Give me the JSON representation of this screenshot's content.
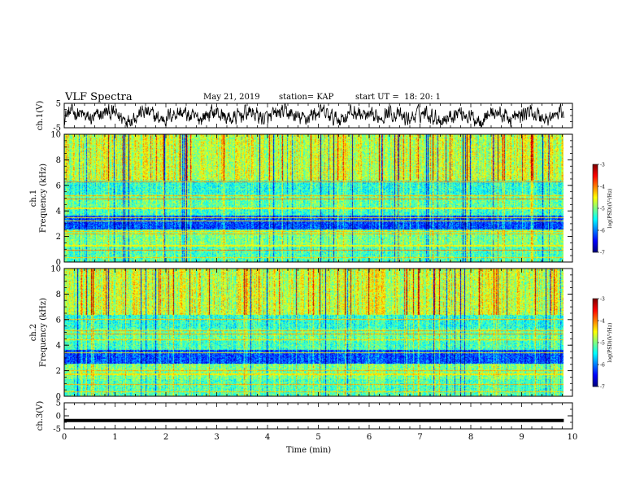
{
  "header": {
    "title": "VLF Spectra",
    "date": "May 21, 2019",
    "station": "station= KAP",
    "start": "start UT =  18: 20: 1"
  },
  "chart_data": [
    {
      "type": "line",
      "panel": "ch1-waveform",
      "ylabel": "ch.1(V)",
      "ylim": [
        -5,
        5
      ],
      "yticks": [
        "5",
        "-5"
      ],
      "x_range_min": [
        0,
        9.83
      ],
      "grid": false
    },
    {
      "type": "heatmap",
      "panel": "ch1-spectrogram",
      "ylabel_top": "ch.1",
      "ylabel": "Frequency (kHz)",
      "ylim": [
        0,
        10
      ],
      "yticks": [
        "0",
        "2",
        "4",
        "6",
        "8",
        "10"
      ],
      "colorbar": {
        "label": "log(PSD)(V²/Hz)",
        "range": [
          -7,
          -3
        ],
        "ticks": [
          "-3",
          "-4",
          "-5",
          "-6",
          "-7"
        ]
      },
      "band_freqs_khz": [
        0.3,
        0.9,
        1.25,
        2.2,
        2.4,
        3.2,
        3.45,
        4.2,
        4.95,
        5.2,
        6.3
      ],
      "band_levels": [
        -4.3,
        -4.0,
        -4.5,
        -4.2,
        -4.3,
        -4.5,
        -4.4,
        -4.4,
        -4.0,
        -4.2,
        -4.1
      ]
    },
    {
      "type": "heatmap",
      "panel": "ch2-spectrogram",
      "ylabel_top": "ch.2",
      "ylabel": "Frequency (kHz)",
      "ylim": [
        0,
        10
      ],
      "yticks": [
        "0",
        "2",
        "4",
        "6",
        "8",
        "10"
      ],
      "colorbar": {
        "label": "log(PSD)(V²/Hz)",
        "range": [
          -7,
          -3
        ],
        "ticks": [
          "-3",
          "-4",
          "-5",
          "-6",
          "-7"
        ]
      },
      "band_freqs_khz": [
        0.3,
        0.9,
        1.7,
        2.0,
        3.4,
        4.4,
        4.9,
        5.15,
        6.0
      ],
      "band_levels": [
        -4.3,
        -4.2,
        -4.4,
        -4.2,
        -4.5,
        -4.3,
        -4.1,
        -4.2,
        -4.2
      ]
    },
    {
      "type": "line",
      "panel": "ch3-waveform",
      "ylabel": "ch.3(V)",
      "ylim": [
        -5,
        5
      ],
      "yticks": [
        "5",
        "0",
        "-5"
      ],
      "constant_value": -1.8,
      "x_range_min": [
        0,
        9.83
      ],
      "grid": false
    }
  ],
  "xaxis": {
    "label": "Time (min)",
    "range": [
      0,
      10
    ],
    "ticks": [
      "0",
      "1",
      "2",
      "3",
      "4",
      "5",
      "6",
      "7",
      "8",
      "9",
      "10"
    ]
  },
  "colors": {
    "axes": "#000000",
    "trace": "#000000"
  }
}
